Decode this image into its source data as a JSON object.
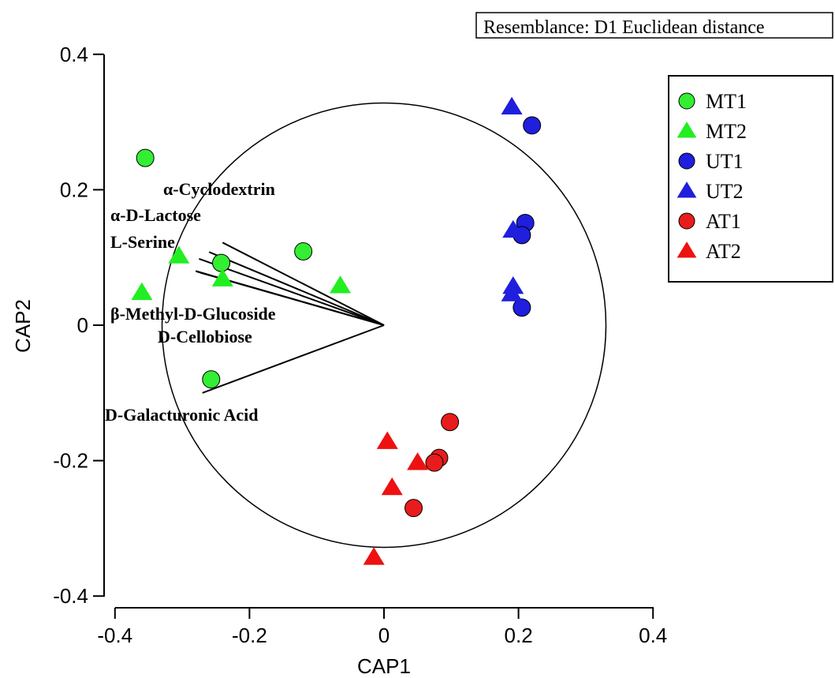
{
  "chart_data": {
    "type": "scatter",
    "subtitle": "Resemblance: D1 Euclidean distance",
    "xlabel": "CAP1",
    "ylabel": "CAP2",
    "xlim": [
      -0.4,
      0.4
    ],
    "ylim": [
      -0.4,
      0.4
    ],
    "xticks": [
      "-0.4",
      "-0.2",
      "0",
      "0.2",
      "0.4"
    ],
    "yticks": [
      "0.4",
      "0.2",
      "0",
      "-0.2",
      "-0.4"
    ],
    "grid": false,
    "legend_position": "top-right",
    "circle": {
      "center": [
        0,
        0
      ],
      "radius": 0.33
    },
    "series": [
      {
        "name": "MT1",
        "marker": "circle",
        "color": "#33ee33",
        "points": [
          [
            -0.355,
            0.247
          ],
          [
            -0.12,
            0.109
          ],
          [
            -0.242,
            0.092
          ],
          [
            -0.257,
            -0.08
          ]
        ]
      },
      {
        "name": "MT2",
        "marker": "triangle",
        "color": "#22ee22",
        "points": [
          [
            -0.305,
            0.102
          ],
          [
            -0.36,
            0.048
          ],
          [
            -0.24,
            0.068
          ],
          [
            -0.065,
            0.058
          ]
        ]
      },
      {
        "name": "UT1",
        "marker": "circle",
        "color": "#1f1fdd",
        "points": [
          [
            0.22,
            0.295
          ],
          [
            0.21,
            0.151
          ],
          [
            0.205,
            0.133
          ],
          [
            0.205,
            0.026
          ]
        ]
      },
      {
        "name": "UT2",
        "marker": "triangle",
        "color": "#1f1fdd",
        "points": [
          [
            0.19,
            0.322
          ],
          [
            0.192,
            0.14
          ],
          [
            0.192,
            0.057
          ],
          [
            0.19,
            0.046
          ]
        ]
      },
      {
        "name": "AT1",
        "marker": "circle",
        "color": "#e81c1c",
        "points": [
          [
            0.098,
            -0.143
          ],
          [
            0.082,
            -0.196
          ],
          [
            0.075,
            -0.203
          ],
          [
            0.044,
            -0.27
          ]
        ]
      },
      {
        "name": "AT2",
        "marker": "triangle",
        "color": "#ee1111",
        "points": [
          [
            0.005,
            -0.172
          ],
          [
            0.05,
            -0.203
          ],
          [
            0.012,
            -0.24
          ],
          [
            -0.015,
            -0.343
          ]
        ]
      }
    ],
    "vectors": [
      {
        "label": "α-Cyclodextrin",
        "end": [
          -0.24,
          0.122
        ]
      },
      {
        "label": "α-D-Lactose",
        "end": [
          -0.26,
          0.108
        ]
      },
      {
        "label": "L-Serine",
        "end": [
          -0.275,
          0.098
        ]
      },
      {
        "label": "β-Methyl-D-Glucoside",
        "end": [
          -0.28,
          0.08
        ]
      },
      {
        "label": "D-Cellobiose",
        "end": [
          -0.278,
          0.079
        ]
      },
      {
        "label": "D-Galacturonic Acid",
        "end": [
          -0.27,
          -0.1
        ]
      }
    ]
  }
}
